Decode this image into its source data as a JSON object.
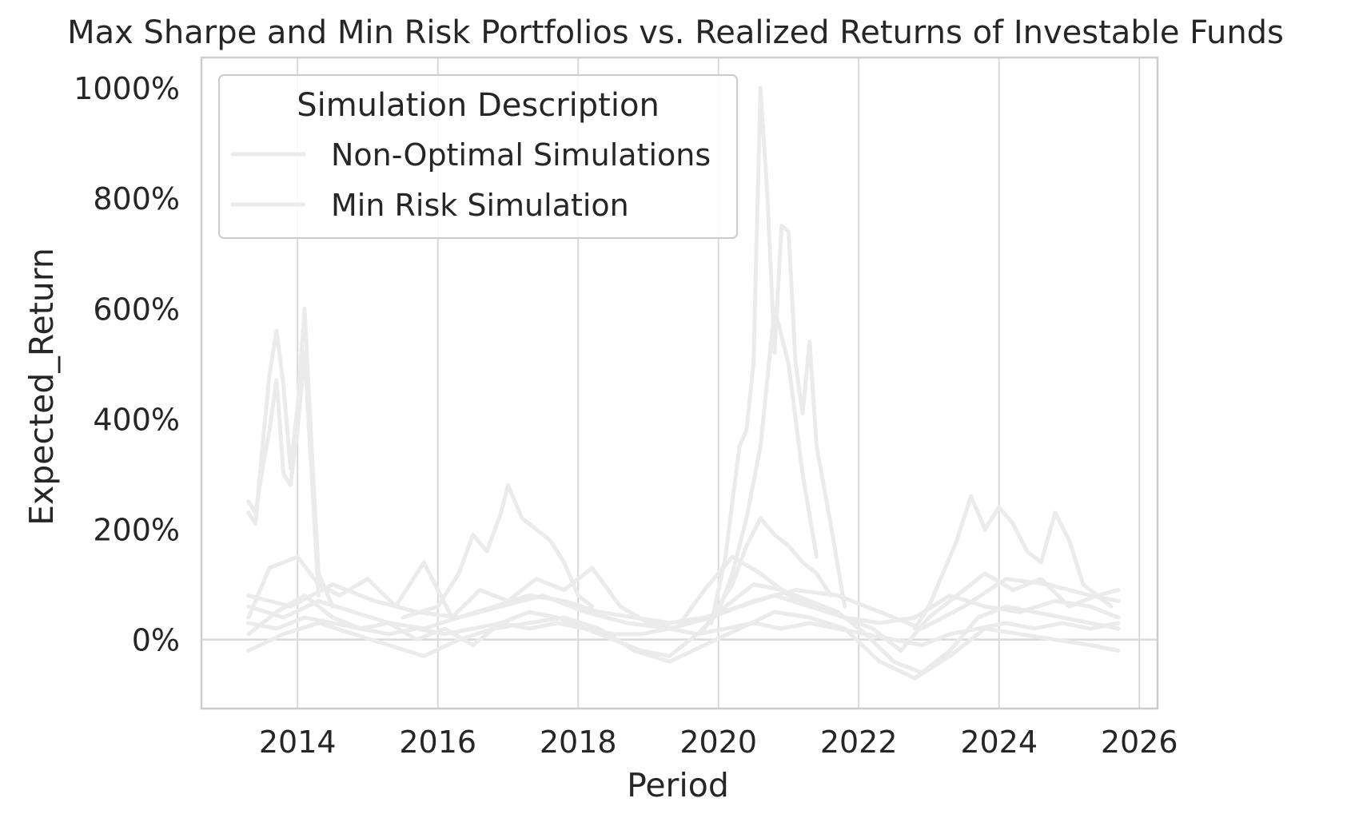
{
  "chart_data": {
    "type": "line",
    "title": "Max Sharpe and Min Risk Portfolios vs. Realized Returns of Investable Funds",
    "xlabel": "Period",
    "ylabel": "Expected_Return",
    "xlim": [
      2012.63,
      2026.26
    ],
    "ylim": [
      -125,
      1055
    ],
    "x_ticks": [
      2014,
      2016,
      2018,
      2020,
      2022,
      2024,
      2026
    ],
    "x_tick_labels": [
      "2014",
      "2016",
      "2018",
      "2020",
      "2022",
      "2024",
      "2026"
    ],
    "y_ticks": [
      0,
      200,
      400,
      600,
      800,
      1000
    ],
    "y_tick_labels": [
      "0%",
      "200%",
      "400%",
      "600%",
      "800%",
      "1000%"
    ],
    "y_unit": "percent",
    "grid": true,
    "zero_line": true,
    "legend": {
      "title": "Simulation Description",
      "placement": "upper-left",
      "entries": [
        "Non-Optimal Simulations",
        "Min Risk Simulation"
      ]
    },
    "colors": {
      "line": "#ebebeb",
      "grid": "#d9d9d9",
      "spine": "#cccccc",
      "text": "#262626",
      "background": "#ffffff"
    },
    "series": [
      {
        "x": [
          2013.3,
          2013.4,
          2013.5,
          2013.6,
          2013.7,
          2013.8,
          2013.9,
          2014.0,
          2014.1,
          2014.2,
          2014.3,
          2014.5
        ],
        "values": [
          230,
          210,
          350,
          480,
          560,
          460,
          310,
          420,
          600,
          350,
          120,
          60
        ]
      },
      {
        "x": [
          2013.3,
          2013.4,
          2013.5,
          2013.6,
          2013.7,
          2013.8,
          2013.9,
          2014.0,
          2014.1,
          2014.2,
          2014.3
        ],
        "values": [
          250,
          230,
          310,
          380,
          470,
          300,
          280,
          380,
          520,
          300,
          80
        ]
      },
      {
        "x": [
          2019.9,
          2020.1,
          2020.2,
          2020.3,
          2020.4,
          2020.5,
          2020.6,
          2020.7,
          2020.8,
          2020.9,
          2021.0,
          2021.1,
          2021.2,
          2021.3,
          2021.4,
          2021.6,
          2021.8
        ],
        "values": [
          30,
          150,
          250,
          350,
          380,
          500,
          1000,
          800,
          520,
          750,
          740,
          500,
          410,
          540,
          350,
          210,
          60
        ]
      },
      {
        "x": [
          2020.0,
          2020.2,
          2020.4,
          2020.6,
          2020.8,
          2021.0,
          2021.2,
          2021.4
        ],
        "values": [
          50,
          120,
          220,
          350,
          600,
          500,
          300,
          150
        ]
      },
      {
        "x": [
          2015.5,
          2016.0,
          2016.3,
          2016.5,
          2016.7,
          2016.9,
          2017.0,
          2017.2,
          2017.4,
          2017.6,
          2017.8,
          2018.0,
          2018.2
        ],
        "values": [
          40,
          60,
          120,
          190,
          160,
          230,
          280,
          220,
          200,
          180,
          140,
          80,
          60
        ]
      },
      {
        "x": [
          2022.8,
          2023.0,
          2023.2,
          2023.4,
          2023.6,
          2023.8,
          2024.0,
          2024.2,
          2024.4,
          2024.6,
          2024.8,
          2025.0,
          2025.2,
          2025.4,
          2025.6
        ],
        "values": [
          20,
          60,
          120,
          180,
          260,
          200,
          240,
          210,
          160,
          140,
          230,
          180,
          100,
          80,
          60
        ]
      },
      {
        "x": [
          2013.3,
          2013.6,
          2014.0,
          2014.3,
          2014.6,
          2015.0,
          2015.4,
          2015.8,
          2016.2,
          2016.6,
          2017.0,
          2017.4,
          2017.8,
          2018.2,
          2018.6,
          2019.0,
          2019.4,
          2019.8,
          2020.2,
          2020.6,
          2021.0,
          2021.4,
          2021.8,
          2022.2,
          2022.6,
          2023.0,
          2023.4,
          2023.8,
          2024.2,
          2024.6,
          2025.0,
          2025.4,
          2025.7
        ],
        "values": [
          40,
          130,
          150,
          100,
          80,
          110,
          60,
          140,
          40,
          90,
          70,
          110,
          90,
          130,
          60,
          30,
          20,
          90,
          150,
          120,
          80,
          60,
          40,
          20,
          -20,
          40,
          80,
          120,
          90,
          110,
          60,
          80,
          90
        ]
      },
      {
        "x": [
          2013.3,
          2013.7,
          2014.1,
          2014.5,
          2014.9,
          2015.3,
          2015.7,
          2016.1,
          2016.5,
          2016.9,
          2017.3,
          2017.7,
          2018.1,
          2018.5,
          2018.9,
          2019.3,
          2019.7,
          2020.1,
          2020.5,
          2020.9,
          2021.3,
          2021.7,
          2022.1,
          2022.5,
          2022.9,
          2023.3,
          2023.7,
          2024.1,
          2024.5,
          2024.9,
          2025.3,
          2025.7
        ],
        "values": [
          10,
          50,
          80,
          40,
          20,
          30,
          0,
          20,
          -10,
          30,
          50,
          40,
          20,
          0,
          -20,
          -30,
          10,
          60,
          100,
          90,
          70,
          50,
          10,
          -40,
          -60,
          -20,
          40,
          60,
          50,
          40,
          30,
          20
        ]
      },
      {
        "x": [
          2013.3,
          2013.8,
          2014.3,
          2014.8,
          2015.3,
          2015.8,
          2016.3,
          2016.8,
          2017.3,
          2017.8,
          2018.3,
          2018.8,
          2019.3,
          2019.8,
          2020.3,
          2020.8,
          2021.3,
          2021.8,
          2022.3,
          2022.8,
          2023.3,
          2023.8,
          2024.3,
          2024.8,
          2025.3,
          2025.7
        ],
        "values": [
          -20,
          10,
          30,
          10,
          -10,
          -30,
          0,
          20,
          30,
          40,
          20,
          -20,
          -40,
          -10,
          20,
          50,
          40,
          20,
          -40,
          -70,
          -30,
          20,
          10,
          0,
          -10,
          -20
        ]
      },
      {
        "x": [
          2013.3,
          2013.8,
          2014.3,
          2014.8,
          2015.3,
          2015.8,
          2016.3,
          2016.8,
          2017.3,
          2017.8,
          2018.3,
          2018.8,
          2019.3,
          2019.8,
          2020.3,
          2020.8,
          2021.3,
          2021.8,
          2022.3,
          2022.8,
          2023.3,
          2023.8,
          2024.3,
          2024.8,
          2025.3,
          2025.7
        ],
        "values": [
          60,
          40,
          70,
          50,
          30,
          20,
          40,
          60,
          80,
          70,
          50,
          40,
          30,
          40,
          60,
          80,
          60,
          40,
          30,
          40,
          80,
          60,
          50,
          70,
          60,
          40
        ]
      },
      {
        "x": [
          2013.3,
          2013.7,
          2014.1,
          2014.5,
          2014.9,
          2015.3,
          2015.7,
          2016.1,
          2016.5,
          2016.9,
          2017.3,
          2017.7,
          2018.1,
          2018.5,
          2018.9,
          2019.3,
          2019.7,
          2020.1,
          2020.5,
          2020.9,
          2021.3,
          2021.7,
          2022.1,
          2022.5,
          2022.9,
          2023.3,
          2023.7,
          2024.1,
          2024.5,
          2024.9,
          2025.3,
          2025.7
        ],
        "values": [
          30,
          20,
          40,
          30,
          20,
          10,
          20,
          10,
          20,
          30,
          20,
          30,
          20,
          10,
          10,
          20,
          10,
          20,
          30,
          20,
          30,
          20,
          10,
          0,
          -10,
          10,
          20,
          30,
          20,
          30,
          20,
          30
        ]
      },
      {
        "x": [
          2013.3,
          2013.9,
          2014.5,
          2015.1,
          2015.7,
          2016.3,
          2016.9,
          2017.5,
          2018.1,
          2018.7,
          2019.3,
          2019.9,
          2020.5,
          2021.1,
          2021.7,
          2022.3,
          2022.9,
          2023.5,
          2024.1,
          2024.7,
          2025.3,
          2025.7
        ],
        "values": [
          80,
          60,
          100,
          70,
          50,
          40,
          60,
          80,
          50,
          30,
          20,
          40,
          70,
          90,
          80,
          50,
          20,
          60,
          110,
          100,
          80,
          70
        ]
      },
      {
        "x": [
          2019.8,
          2020.0,
          2020.2,
          2020.4,
          2020.6,
          2020.8,
          2021.0,
          2021.2,
          2021.4,
          2021.6
        ],
        "values": [
          20,
          60,
          100,
          170,
          220,
          190,
          170,
          140,
          120,
          80
        ]
      }
    ]
  }
}
